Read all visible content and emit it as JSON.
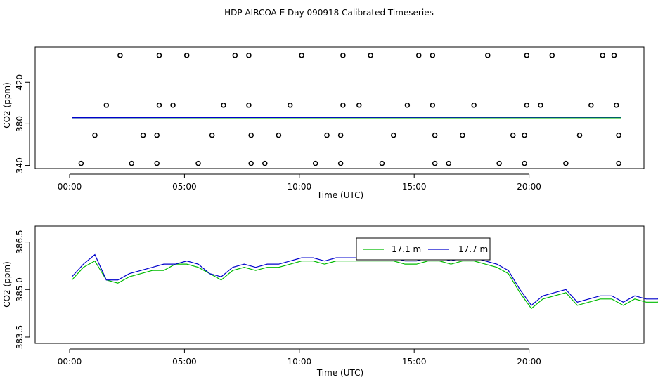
{
  "title": "HDP AIRCOA E  Day 090918  Calibrated Timeseries",
  "chart_data": [
    {
      "type": "scatter+line",
      "xlabel": "Time (UTC)",
      "ylabel": "CO2 (ppm)",
      "xlim": [
        -1.5,
        25
      ],
      "ylim": [
        337,
        454
      ],
      "xticks": [
        0,
        5,
        10,
        15,
        20
      ],
      "xtick_labels": [
        "00:00",
        "05:00",
        "10:00",
        "15:00",
        "20:00"
      ],
      "yticks": [
        340,
        380,
        420
      ],
      "ytick_labels": [
        "340",
        "380",
        "420"
      ],
      "scatter_series": {
        "name": "calibration / reference values",
        "color": "#000000",
        "points": [
          [
            2.2,
            446
          ],
          [
            3.9,
            446
          ],
          [
            5.1,
            446
          ],
          [
            7.2,
            446
          ],
          [
            7.8,
            446
          ],
          [
            10.1,
            446
          ],
          [
            11.9,
            446
          ],
          [
            13.1,
            446
          ],
          [
            15.2,
            446
          ],
          [
            15.8,
            446
          ],
          [
            18.2,
            446
          ],
          [
            19.9,
            446
          ],
          [
            21.0,
            446
          ],
          [
            23.2,
            446
          ],
          [
            23.7,
            446
          ],
          [
            1.6,
            398
          ],
          [
            3.9,
            398
          ],
          [
            4.5,
            398
          ],
          [
            6.7,
            398
          ],
          [
            7.8,
            398
          ],
          [
            9.6,
            398
          ],
          [
            11.9,
            398
          ],
          [
            12.6,
            398
          ],
          [
            14.7,
            398
          ],
          [
            15.8,
            398
          ],
          [
            17.6,
            398
          ],
          [
            19.9,
            398
          ],
          [
            20.5,
            398
          ],
          [
            22.7,
            398
          ],
          [
            23.8,
            398
          ],
          [
            1.1,
            369
          ],
          [
            3.2,
            369
          ],
          [
            3.8,
            369
          ],
          [
            6.2,
            369
          ],
          [
            7.9,
            369
          ],
          [
            9.1,
            369
          ],
          [
            11.2,
            369
          ],
          [
            11.8,
            369
          ],
          [
            14.1,
            369
          ],
          [
            15.9,
            369
          ],
          [
            17.1,
            369
          ],
          [
            19.3,
            369
          ],
          [
            19.8,
            369
          ],
          [
            22.2,
            369
          ],
          [
            23.9,
            369
          ],
          [
            0.5,
            342
          ],
          [
            2.7,
            342
          ],
          [
            3.8,
            342
          ],
          [
            5.6,
            342
          ],
          [
            7.9,
            342
          ],
          [
            8.5,
            342
          ],
          [
            10.7,
            342
          ],
          [
            11.8,
            342
          ],
          [
            13.6,
            342
          ],
          [
            15.9,
            342
          ],
          [
            16.5,
            342
          ],
          [
            18.7,
            342
          ],
          [
            19.8,
            342
          ],
          [
            21.6,
            342
          ],
          [
            23.9,
            342
          ]
        ]
      },
      "line_series": [
        {
          "name": "17.1 m",
          "color": "#00bb00",
          "x": [
            0.1,
            24
          ],
          "values": [
            385.8,
            385.8
          ]
        },
        {
          "name": "17.7 m",
          "color": "#0000cc",
          "x": [
            0.1,
            24
          ],
          "values": [
            385.9,
            386.5
          ]
        }
      ]
    },
    {
      "type": "line",
      "xlabel": "Time (UTC)",
      "ylabel": "CO2 (ppm)",
      "xlim": [
        -1.5,
        25
      ],
      "ylim": [
        383.3,
        387.0
      ],
      "xticks": [
        0,
        5,
        10,
        15,
        20
      ],
      "xtick_labels": [
        "00:00",
        "05:00",
        "10:00",
        "15:00",
        "20:00"
      ],
      "yticks": [
        383.5,
        385.0,
        386.5
      ],
      "ytick_labels": [
        "383.5",
        "385.0",
        "386.5"
      ],
      "legend": {
        "placement": "top-center",
        "entries": [
          "17.1 m",
          "17.7 m"
        ]
      },
      "series": [
        {
          "name": "17.1 m",
          "color": "#00bb00",
          "x0": 0.1,
          "dx": 0.5,
          "values": [
            385.3,
            385.7,
            385.9,
            385.3,
            385.2,
            385.4,
            385.5,
            385.6,
            385.6,
            385.8,
            385.8,
            385.7,
            385.5,
            385.3,
            385.6,
            385.7,
            385.6,
            385.7,
            385.7,
            385.8,
            385.9,
            385.9,
            385.8,
            385.9,
            385.9,
            385.9,
            385.9,
            385.9,
            385.9,
            385.8,
            385.8,
            385.9,
            385.9,
            385.8,
            385.9,
            385.9,
            385.8,
            385.7,
            385.5,
            384.9,
            384.4,
            384.7,
            384.8,
            384.9,
            384.5,
            384.6,
            384.7,
            384.7,
            384.5,
            384.7,
            384.6,
            384.6,
            384.8,
            384.9,
            384.6,
            384.7,
            384.8,
            384.8,
            384.9,
            384.7,
            384.8,
            384.9,
            384.6,
            384.7,
            384.6,
            384.8,
            384.9,
            385.0,
            384.8,
            384.7,
            385.4,
            386.9,
            386.6
          ]
        },
        {
          "name": "17.7 m",
          "color": "#0000cc",
          "x0": 0.1,
          "dx": 0.5,
          "values": [
            385.4,
            385.8,
            386.1,
            385.3,
            385.3,
            385.5,
            385.6,
            385.7,
            385.8,
            385.8,
            385.9,
            385.8,
            385.5,
            385.4,
            385.7,
            385.8,
            385.7,
            385.8,
            385.8,
            385.9,
            386.0,
            386.0,
            385.9,
            386.0,
            386.0,
            386.0,
            386.0,
            386.0,
            386.0,
            385.9,
            385.9,
            386.0,
            386.0,
            385.9,
            386.0,
            386.0,
            385.9,
            385.8,
            385.6,
            385.0,
            384.5,
            384.8,
            384.9,
            385.0,
            384.6,
            384.7,
            384.8,
            384.8,
            384.6,
            384.8,
            384.7,
            384.7,
            384.9,
            385.0,
            384.7,
            384.8,
            384.9,
            384.9,
            385.0,
            384.8,
            384.9,
            385.0,
            384.7,
            384.8,
            384.7,
            384.9,
            385.0,
            385.1,
            384.9,
            384.8,
            385.5,
            386.6,
            386.7
          ]
        }
      ]
    }
  ]
}
